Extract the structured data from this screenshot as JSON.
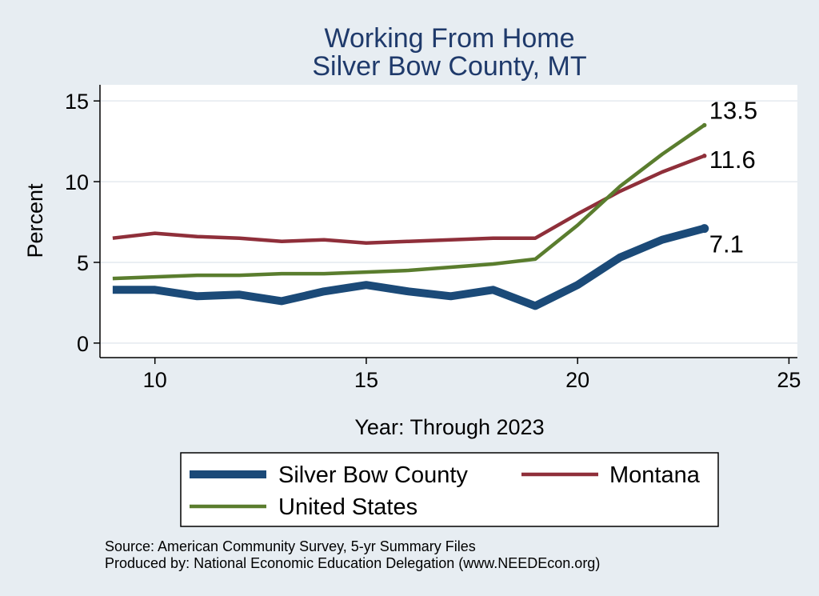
{
  "chart_data": {
    "type": "line",
    "title": "Working From Home",
    "subtitle": "Silver Bow County, MT",
    "xlabel": "Year: Through 2023",
    "ylabel": "Percent",
    "xlim": [
      8.7,
      25.2
    ],
    "ylim": [
      -0.9,
      16.0
    ],
    "x_ticks": [
      10,
      15,
      20,
      25
    ],
    "y_ticks": [
      0,
      5,
      10,
      15
    ],
    "grid": true,
    "x": [
      9,
      10,
      11,
      12,
      13,
      14,
      15,
      16,
      17,
      18,
      19,
      20,
      21,
      22,
      23
    ],
    "series": [
      {
        "name": "Silver Bow County",
        "color": "#1b4a78",
        "width": "thick",
        "values": [
          3.3,
          3.3,
          2.9,
          3.0,
          2.6,
          3.2,
          3.6,
          3.2,
          2.9,
          3.3,
          2.3,
          3.6,
          5.3,
          6.4,
          7.1
        ],
        "end_label": "7.1"
      },
      {
        "name": "Montana",
        "color": "#8f2f3a",
        "width": "thin",
        "values": [
          6.5,
          6.8,
          6.6,
          6.5,
          6.3,
          6.4,
          6.2,
          6.3,
          6.4,
          6.5,
          6.5,
          8.0,
          9.4,
          10.6,
          11.6
        ],
        "end_label": "11.6"
      },
      {
        "name": "United States",
        "color": "#5a7d2e",
        "width": "thin",
        "values": [
          4.0,
          4.1,
          4.2,
          4.2,
          4.3,
          4.3,
          4.4,
          4.5,
          4.7,
          4.9,
          5.2,
          7.3,
          9.7,
          11.7,
          13.5
        ],
        "end_label": "13.5"
      }
    ],
    "legend": {
      "placement": "bottom",
      "entries": [
        "Silver Bow County",
        "Montana",
        "United States"
      ]
    },
    "notes": [
      "Source: American Community Survey, 5-yr Summary Files",
      "Produced by: National Economic Education Delegation (www.NEEDEcon.org)"
    ]
  }
}
